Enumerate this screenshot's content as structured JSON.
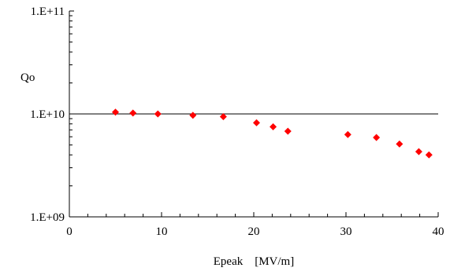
{
  "chart_data": {
    "type": "scatter",
    "title": "",
    "xlabel": "Epeak    [MV/m]",
    "ylabel": "Qo",
    "xlim": [
      0,
      40
    ],
    "ylim": [
      1000000000.0,
      100000000000.0
    ],
    "yscale": "log",
    "x_ticks": [
      0,
      10,
      20,
      30,
      40
    ],
    "x_tick_labels": [
      "0",
      "10",
      "20",
      "30",
      "40"
    ],
    "y_ticks": [
      1000000000.0,
      10000000000.0,
      100000000000.0
    ],
    "y_tick_labels": [
      "1.E+09",
      "1.E+10",
      "1.E+11"
    ],
    "reference_line_y": 10000000000.0,
    "marker": "diamond",
    "marker_color": "#ff0000",
    "series": [
      {
        "x": [
          5.0,
          6.9,
          9.6,
          13.4,
          16.7,
          20.3,
          22.1,
          23.7,
          30.2,
          33.3,
          35.8,
          37.9,
          39.0
        ],
        "y": [
          10400000000.0,
          10200000000.0,
          10000000000.0,
          9700000000.0,
          9400000000.0,
          8200000000.0,
          7500000000.0,
          6800000000.0,
          6300000000.0,
          5900000000.0,
          5100000000.0,
          4300000000.0,
          4000000000.0
        ]
      }
    ]
  }
}
